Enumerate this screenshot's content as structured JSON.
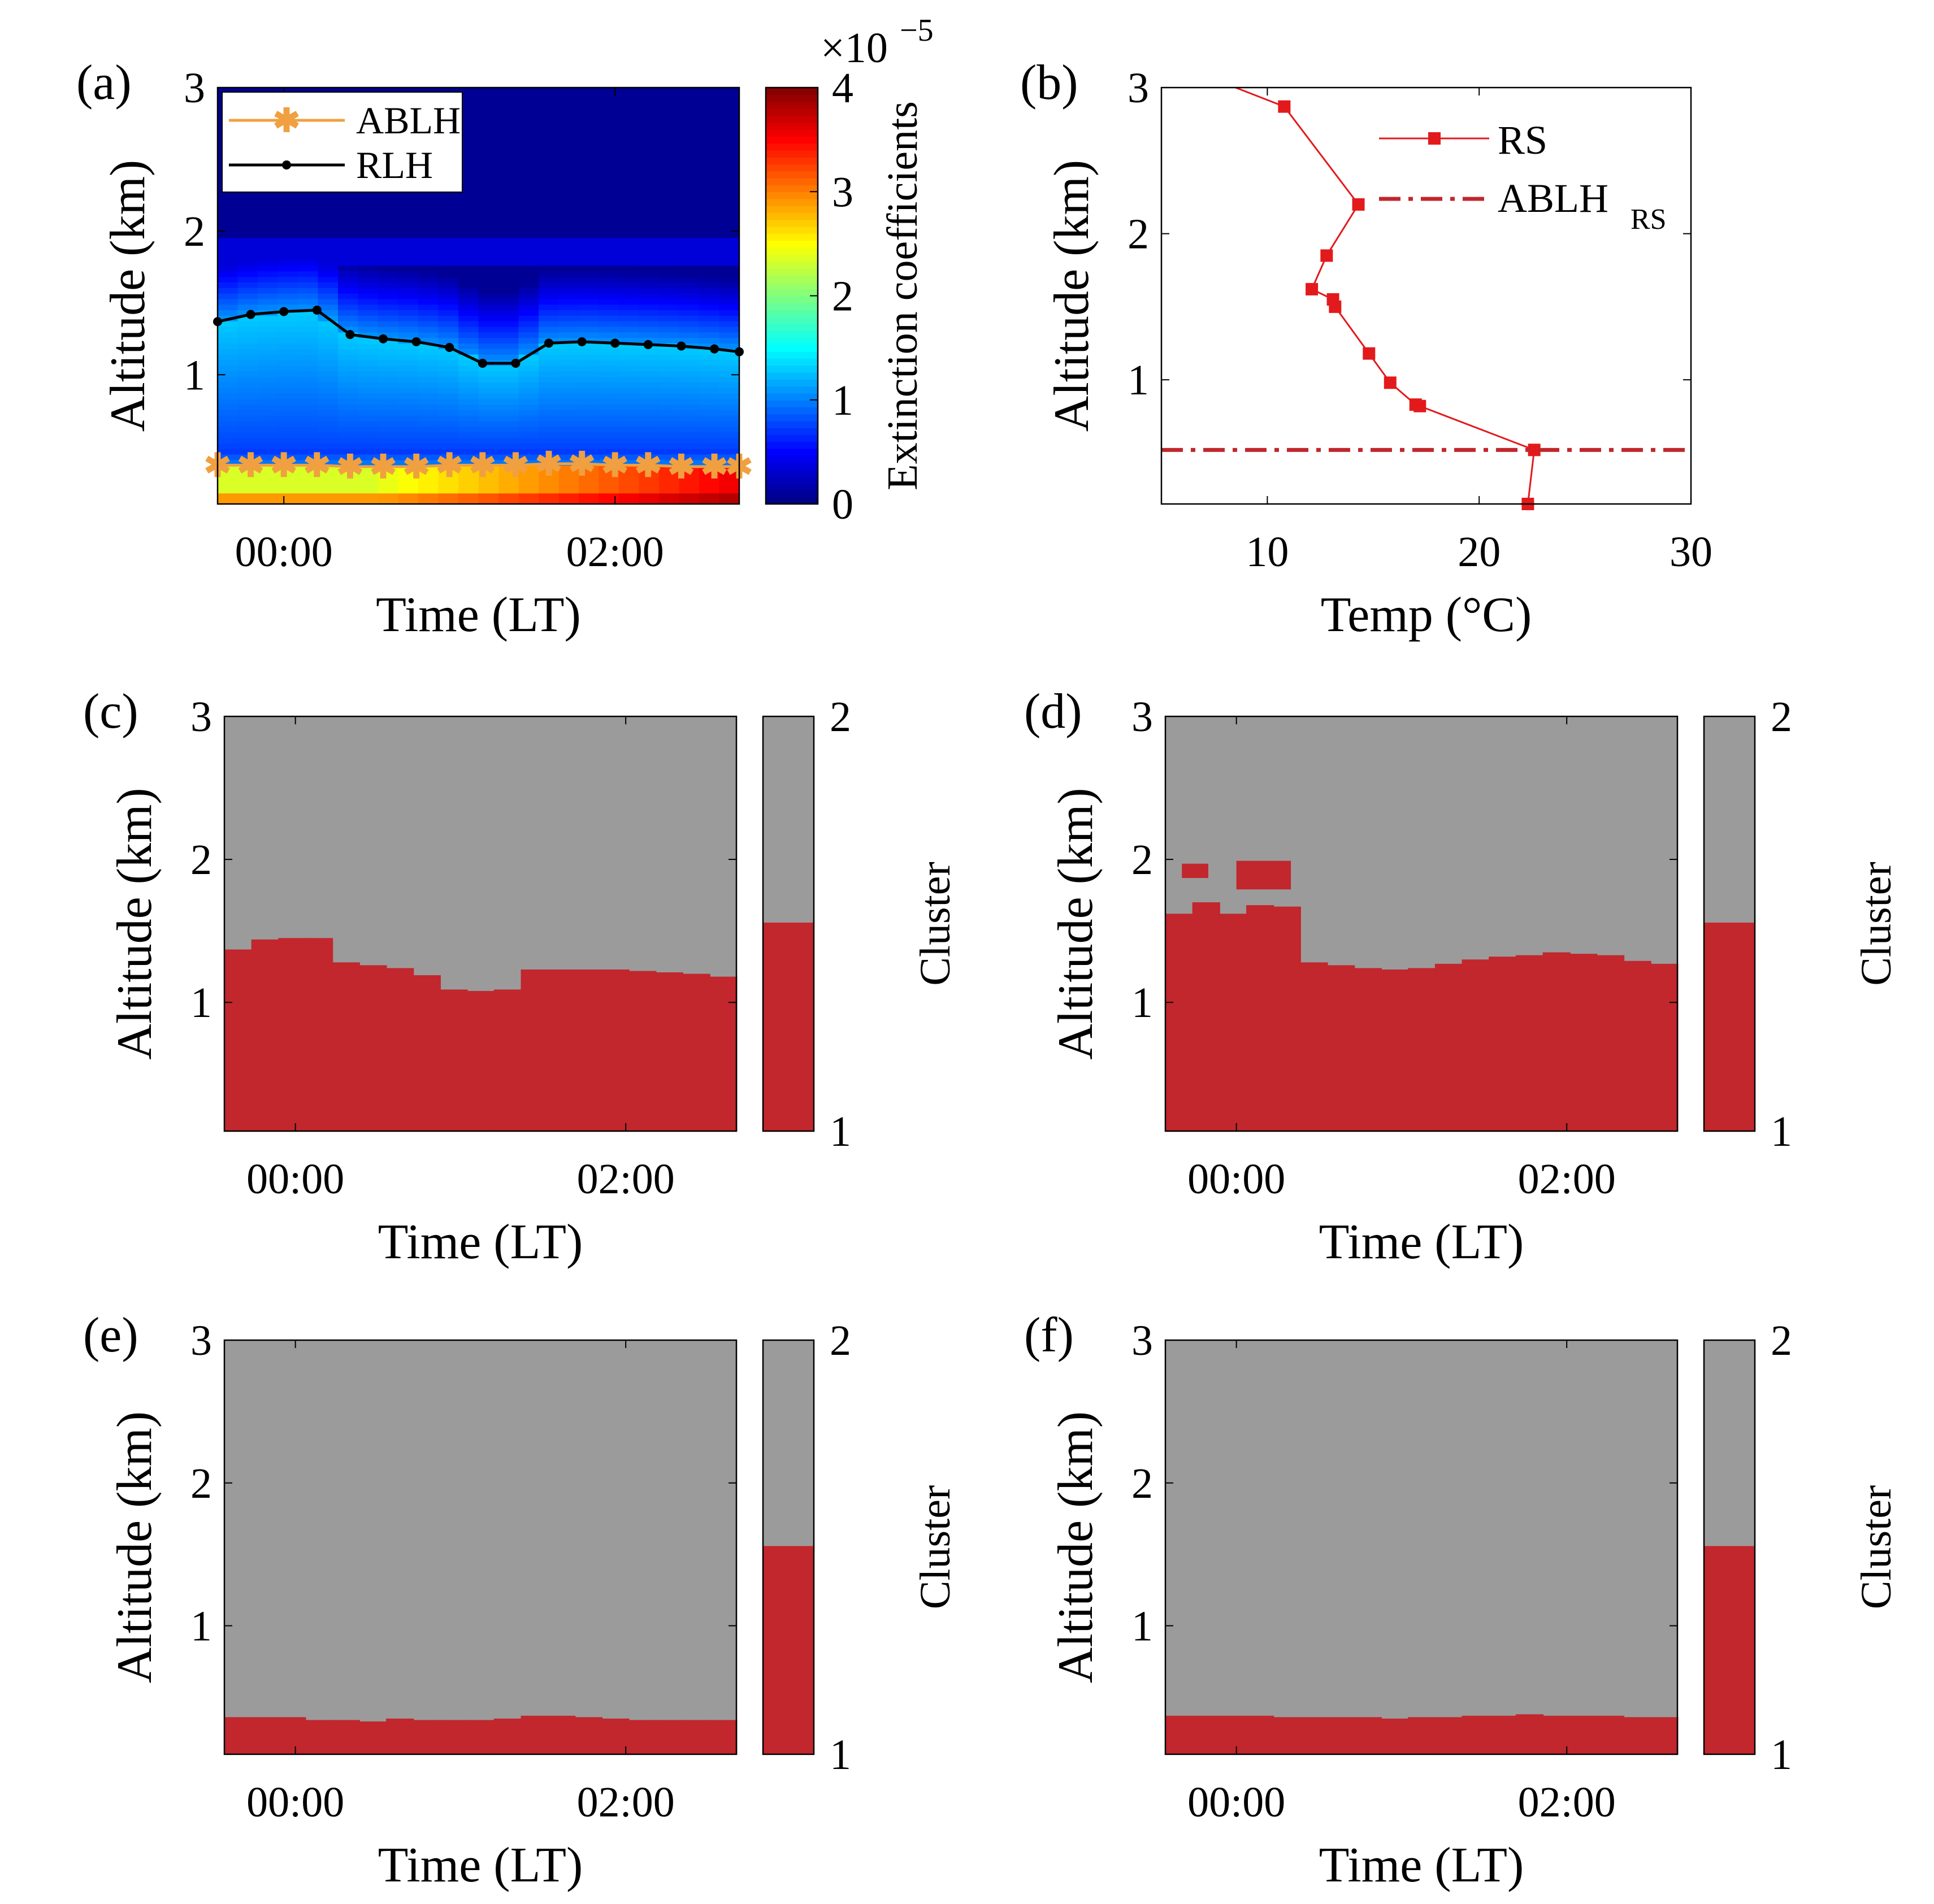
{
  "colors": {
    "red_cluster": "#c1272d",
    "gray_cluster": "#9b9b9b",
    "ablh_line": "#f0a040",
    "rlh_line": "#000000",
    "rs_line": "#e31a1c",
    "ablh_rs_line": "#c1272d"
  },
  "chart_data": [
    {
      "id": "a",
      "type": "heatmap",
      "panel_label": "(a)",
      "xlabel": "Time (LT)",
      "ylabel": "Altitude (km)",
      "xlim": [
        -0.4,
        2.75
      ],
      "ylim": [
        0.1,
        3
      ],
      "xticks": [
        {
          "value": 0,
          "label": "00:00"
        },
        {
          "value": 2,
          "label": "02:00"
        }
      ],
      "yticks": [
        {
          "value": 1,
          "label": "1"
        },
        {
          "value": 2,
          "label": "2"
        },
        {
          "value": 3,
          "label": "3"
        }
      ],
      "colorbar": {
        "label": "Extinction coefficients",
        "exponent_label": "×10",
        "exponent_sup": "−5",
        "range": [
          0,
          4
        ],
        "ticks": [
          {
            "value": 0,
            "label": "0"
          },
          {
            "value": 1,
            "label": "1"
          },
          {
            "value": 2,
            "label": "2"
          },
          {
            "value": 3,
            "label": "3"
          },
          {
            "value": 4,
            "label": "4"
          }
        ]
      },
      "legend": [
        "ABLH",
        "RLH"
      ],
      "times": [
        -0.4,
        -0.2,
        0.0,
        0.2,
        0.4,
        0.6,
        0.8,
        1.0,
        1.2,
        1.4,
        1.6,
        1.8,
        2.0,
        2.2,
        2.4,
        2.6,
        2.75
      ],
      "series": [
        {
          "name": "ABLH",
          "values": [
            0.37,
            0.37,
            0.37,
            0.37,
            0.36,
            0.36,
            0.36,
            0.37,
            0.37,
            0.37,
            0.38,
            0.38,
            0.37,
            0.37,
            0.36,
            0.36,
            0.36
          ]
        },
        {
          "name": "RLH",
          "values": [
            1.37,
            1.42,
            1.44,
            1.45,
            1.28,
            1.25,
            1.23,
            1.19,
            1.08,
            1.08,
            1.22,
            1.23,
            1.22,
            1.21,
            1.2,
            1.18,
            1.16
          ]
        }
      ]
    },
    {
      "id": "b",
      "type": "line",
      "panel_label": "(b)",
      "xlabel": "Temp (°C)",
      "ylabel": "Altitude (km)",
      "xlim": [
        5,
        30
      ],
      "ylim": [
        0.15,
        3
      ],
      "xticks": [
        {
          "value": 10,
          "label": "10"
        },
        {
          "value": 20,
          "label": "20"
        },
        {
          "value": 30,
          "label": "30"
        }
      ],
      "yticks": [
        {
          "value": 1,
          "label": "1"
        },
        {
          "value": 2,
          "label": "2"
        },
        {
          "value": 3,
          "label": "3"
        }
      ],
      "legend": {
        "rs": "RS",
        "ablh_main": "ABLH",
        "ablh_sub": "RS"
      },
      "series": [
        {
          "name": "RS",
          "temp": [
            22.3,
            22.6,
            17.2,
            17.0,
            15.8,
            14.8,
            13.2,
            13.1,
            12.1,
            12.8,
            14.3,
            10.8,
            8.5
          ],
          "alt": [
            0.15,
            0.52,
            0.82,
            0.83,
            0.98,
            1.18,
            1.5,
            1.55,
            1.62,
            1.85,
            2.2,
            2.87,
            3.0
          ]
        }
      ],
      "ablh_rs_altitude": 0.52
    },
    {
      "id": "c",
      "type": "heatmap",
      "panel_label": "(c)",
      "xlabel": "Time (LT)",
      "ylabel": "Altitude (km)",
      "colorbar_label": "Cluster",
      "colorbar_ticks": [
        {
          "value": 1,
          "label": "1"
        },
        {
          "value": 2,
          "label": "2"
        }
      ],
      "xlim": [
        -0.43,
        2.67
      ],
      "ylim": [
        0.1,
        3
      ],
      "xticks": [
        {
          "value": 0,
          "label": "00:00"
        },
        {
          "value": 2,
          "label": "02:00"
        }
      ],
      "yticks": [
        {
          "value": 1,
          "label": "1"
        },
        {
          "value": 2,
          "label": "2"
        },
        {
          "value": 3,
          "label": "3"
        }
      ],
      "cluster1_top": [
        1.37,
        1.44,
        1.45,
        1.45,
        1.28,
        1.26,
        1.24,
        1.19,
        1.09,
        1.08,
        1.09,
        1.23,
        1.23,
        1.23,
        1.23,
        1.22,
        1.21,
        1.2,
        1.18
      ],
      "extra_cluster1_blocks": []
    },
    {
      "id": "d",
      "type": "heatmap",
      "panel_label": "(d)",
      "xlabel": "Time (LT)",
      "ylabel": "Altitude (km)",
      "colorbar_label": "Cluster",
      "colorbar_ticks": [
        {
          "value": 1,
          "label": "1"
        },
        {
          "value": 2,
          "label": "2"
        }
      ],
      "xlim": [
        -0.43,
        2.67
      ],
      "ylim": [
        0.1,
        3
      ],
      "xticks": [
        {
          "value": 0,
          "label": "00:00"
        },
        {
          "value": 2,
          "label": "02:00"
        }
      ],
      "yticks": [
        {
          "value": 1,
          "label": "1"
        },
        {
          "value": 2,
          "label": "2"
        },
        {
          "value": 3,
          "label": "3"
        }
      ],
      "cluster1_top": [
        1.62,
        1.7,
        1.62,
        1.68,
        1.67,
        1.28,
        1.26,
        1.24,
        1.23,
        1.24,
        1.27,
        1.3,
        1.32,
        1.33,
        1.35,
        1.34,
        1.33,
        1.29,
        1.27
      ],
      "extra_cluster1_blocks": [
        {
          "t0": -0.33,
          "t1": -0.17,
          "y0": 1.87,
          "y1": 1.97
        },
        {
          "t0": 0.0,
          "t1": 0.33,
          "y0": 1.79,
          "y1": 1.99
        }
      ]
    },
    {
      "id": "e",
      "type": "heatmap",
      "panel_label": "(e)",
      "xlabel": "Time (LT)",
      "ylabel": "Altitude (km)",
      "colorbar_label": "Cluster",
      "colorbar_ticks": [
        {
          "value": 1,
          "label": "1"
        },
        {
          "value": 2,
          "label": "2"
        }
      ],
      "xlim": [
        -0.43,
        2.67
      ],
      "ylim": [
        0.1,
        3
      ],
      "xticks": [
        {
          "value": 0,
          "label": "00:00"
        },
        {
          "value": 2,
          "label": "02:00"
        }
      ],
      "yticks": [
        {
          "value": 1,
          "label": "1"
        },
        {
          "value": 2,
          "label": "2"
        },
        {
          "value": 3,
          "label": "3"
        }
      ],
      "cluster1_top": [
        0.36,
        0.36,
        0.36,
        0.34,
        0.34,
        0.33,
        0.35,
        0.34,
        0.34,
        0.34,
        0.35,
        0.37,
        0.37,
        0.36,
        0.35,
        0.34,
        0.34,
        0.34,
        0.34
      ],
      "extra_cluster1_blocks": []
    },
    {
      "id": "f",
      "type": "heatmap",
      "panel_label": "(f)",
      "xlabel": "Time (LT)",
      "ylabel": "Altitude (km)",
      "colorbar_label": "Cluster",
      "colorbar_ticks": [
        {
          "value": 1,
          "label": "1"
        },
        {
          "value": 2,
          "label": "2"
        }
      ],
      "xlim": [
        -0.43,
        2.67
      ],
      "ylim": [
        0.1,
        3
      ],
      "xticks": [
        {
          "value": 0,
          "label": "00:00"
        },
        {
          "value": 2,
          "label": "02:00"
        }
      ],
      "yticks": [
        {
          "value": 1,
          "label": "1"
        },
        {
          "value": 2,
          "label": "2"
        },
        {
          "value": 3,
          "label": "3"
        }
      ],
      "cluster1_top": [
        0.37,
        0.37,
        0.37,
        0.37,
        0.36,
        0.36,
        0.36,
        0.36,
        0.35,
        0.36,
        0.36,
        0.37,
        0.37,
        0.38,
        0.37,
        0.37,
        0.37,
        0.36,
        0.36
      ],
      "extra_cluster1_blocks": []
    }
  ]
}
